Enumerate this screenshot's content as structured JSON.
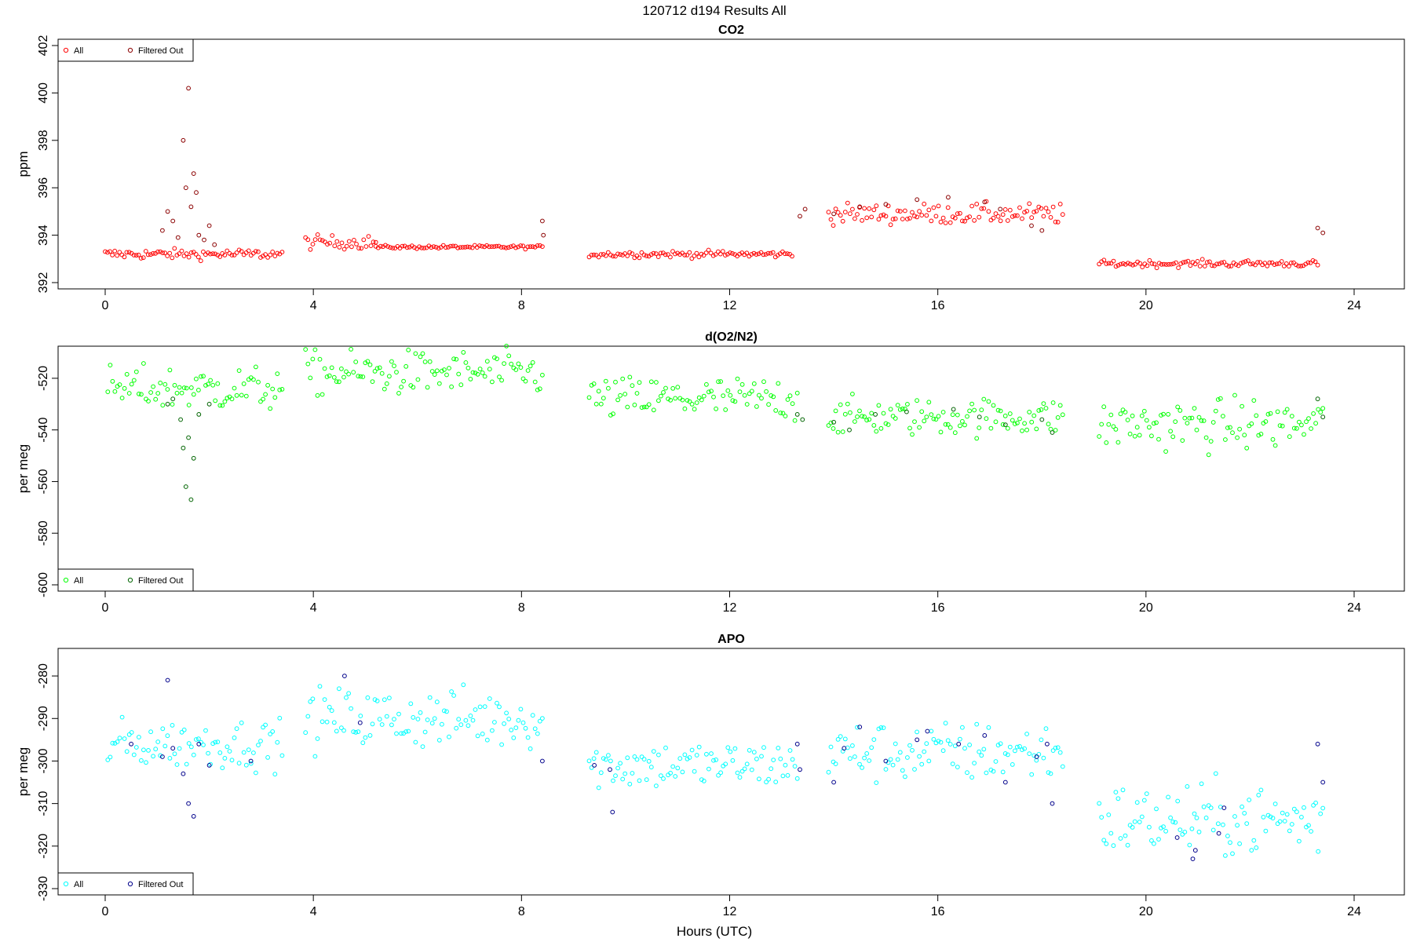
{
  "page_title": "120712   d194   Results All",
  "xlabel": "Hours (UTC)",
  "chart_data": [
    {
      "type": "scatter",
      "title": "CO2",
      "ylabel": "ppm",
      "xlim": [
        0,
        24
      ],
      "ylim": [
        392,
        402
      ],
      "xticks": [
        0,
        4,
        8,
        12,
        16,
        20,
        24
      ],
      "yticks": [
        392,
        394,
        396,
        398,
        400,
        402
      ],
      "legend_position": "top-left",
      "grid": false,
      "series": [
        {
          "name": "All",
          "color": "#ff0000",
          "segments": [
            {
              "x0": 0.0,
              "x1": 3.4,
              "base": 393.2,
              "noise": 0.15
            },
            {
              "x0": 3.85,
              "x1": 5.2,
              "base": 393.7,
              "noise": 0.2
            },
            {
              "x0": 5.2,
              "x1": 8.4,
              "base": 393.5,
              "noise": 0.05
            },
            {
              "x0": 9.3,
              "x1": 13.2,
              "base": 393.2,
              "noise": 0.1
            },
            {
              "x0": 13.9,
              "x1": 18.4,
              "base": 394.9,
              "noise": 0.3
            },
            {
              "x0": 19.1,
              "x1": 23.3,
              "base": 392.8,
              "noise": 0.1
            }
          ]
        },
        {
          "name": "Filtered Out",
          "color": "#8b0000",
          "points": [
            [
              1.1,
              394.2
            ],
            [
              1.2,
              395.0
            ],
            [
              1.3,
              394.6
            ],
            [
              1.4,
              393.9
            ],
            [
              1.5,
              398.0
            ],
            [
              1.55,
              396.0
            ],
            [
              1.6,
              400.2
            ],
            [
              1.65,
              395.2
            ],
            [
              1.7,
              396.6
            ],
            [
              1.75,
              395.8
            ],
            [
              1.8,
              394.0
            ],
            [
              1.9,
              393.8
            ],
            [
              2.0,
              394.4
            ],
            [
              2.1,
              393.6
            ],
            [
              8.4,
              394.6
            ],
            [
              8.42,
              394.0
            ],
            [
              13.35,
              394.8
            ],
            [
              13.45,
              395.1
            ],
            [
              14.0,
              394.9
            ],
            [
              14.5,
              395.2
            ],
            [
              15.0,
              395.3
            ],
            [
              15.6,
              395.5
            ],
            [
              16.2,
              395.6
            ],
            [
              16.9,
              395.4
            ],
            [
              17.2,
              395.1
            ],
            [
              17.8,
              394.4
            ],
            [
              18.0,
              394.2
            ],
            [
              23.3,
              394.3
            ],
            [
              23.4,
              394.1
            ]
          ]
        }
      ]
    },
    {
      "type": "scatter",
      "title": "d(O2/N2)",
      "ylabel": "per meg",
      "xlim": [
        0,
        24
      ],
      "ylim": [
        -600,
        -510
      ],
      "xticks": [
        0,
        4,
        8,
        12,
        16,
        20,
        24
      ],
      "yticks": [
        -600,
        -580,
        -560,
        -540,
        -520
      ],
      "legend_position": "bottom-left",
      "grid": false,
      "series": [
        {
          "name": "All",
          "color": "#00ff00",
          "segments": [
            {
              "x0": 0.05,
              "x1": 3.4,
              "base": -524,
              "noise": 6
            },
            {
              "x0": 3.85,
              "x1": 8.4,
              "base": -518,
              "noise": 6
            },
            {
              "x0": 9.3,
              "x1": 13.3,
              "base": -528,
              "noise": 6
            },
            {
              "x0": 13.9,
              "x1": 18.4,
              "base": -535,
              "noise": 5
            },
            {
              "x0": 19.1,
              "x1": 23.4,
              "base": -538,
              "noise": 7
            }
          ]
        },
        {
          "name": "Filtered Out",
          "color": "#006400",
          "points": [
            [
              1.2,
              -530
            ],
            [
              1.3,
              -528
            ],
            [
              1.45,
              -536
            ],
            [
              1.5,
              -547
            ],
            [
              1.55,
              -562
            ],
            [
              1.6,
              -543
            ],
            [
              1.65,
              -567
            ],
            [
              1.7,
              -551
            ],
            [
              1.8,
              -534
            ],
            [
              2.0,
              -530
            ],
            [
              13.3,
              -534
            ],
            [
              13.4,
              -536
            ],
            [
              14.0,
              -537
            ],
            [
              14.3,
              -540
            ],
            [
              14.8,
              -534
            ],
            [
              15.4,
              -533
            ],
            [
              16.3,
              -532
            ],
            [
              16.8,
              -535
            ],
            [
              17.3,
              -538
            ],
            [
              18.0,
              -536
            ],
            [
              18.2,
              -541
            ],
            [
              23.3,
              -528
            ],
            [
              23.4,
              -535
            ]
          ]
        }
      ]
    },
    {
      "type": "scatter",
      "title": "APO",
      "ylabel": "per meg",
      "xlim": [
        0,
        24
      ],
      "ylim": [
        -330,
        -275
      ],
      "xticks": [
        0,
        4,
        8,
        12,
        16,
        20,
        24
      ],
      "yticks": [
        -330,
        -320,
        -310,
        -300,
        -290,
        -280
      ],
      "legend_position": "bottom-left",
      "grid": false,
      "series": [
        {
          "name": "All",
          "color": "#00ffff",
          "segments": [
            {
              "x0": 0.05,
              "x1": 3.4,
              "base": -296,
              "noise": 4
            },
            {
              "x0": 3.85,
              "x1": 8.4,
              "base": -290,
              "noise": 5
            },
            {
              "x0": 9.3,
              "x1": 13.3,
              "base": -301,
              "noise": 4
            },
            {
              "x0": 13.9,
              "x1": 18.4,
              "base": -298,
              "noise": 5
            },
            {
              "x0": 19.1,
              "x1": 23.4,
              "base": -314,
              "noise": 6
            }
          ]
        },
        {
          "name": "Filtered Out",
          "color": "#00008b",
          "points": [
            [
              0.5,
              -296
            ],
            [
              1.1,
              -299
            ],
            [
              1.2,
              -281
            ],
            [
              1.3,
              -297
            ],
            [
              1.5,
              -303
            ],
            [
              1.6,
              -310
            ],
            [
              1.7,
              -313
            ],
            [
              1.8,
              -296
            ],
            [
              2.0,
              -301
            ],
            [
              2.8,
              -300
            ],
            [
              4.6,
              -280
            ],
            [
              4.9,
              -291
            ],
            [
              8.4,
              -300
            ],
            [
              9.4,
              -301
            ],
            [
              9.7,
              -302
            ],
            [
              9.75,
              -312
            ],
            [
              13.3,
              -296
            ],
            [
              13.35,
              -302
            ],
            [
              14.0,
              -305
            ],
            [
              14.2,
              -297
            ],
            [
              14.5,
              -292
            ],
            [
              15.0,
              -300
            ],
            [
              15.6,
              -295
            ],
            [
              15.8,
              -293
            ],
            [
              16.4,
              -296
            ],
            [
              16.9,
              -294
            ],
            [
              17.3,
              -305
            ],
            [
              17.9,
              -299
            ],
            [
              18.1,
              -296
            ],
            [
              18.2,
              -310
            ],
            [
              20.6,
              -318
            ],
            [
              21.4,
              -317
            ],
            [
              21.5,
              -311
            ],
            [
              20.9,
              -323
            ],
            [
              20.95,
              -321
            ],
            [
              23.3,
              -296
            ],
            [
              23.4,
              -305
            ]
          ]
        }
      ]
    }
  ]
}
